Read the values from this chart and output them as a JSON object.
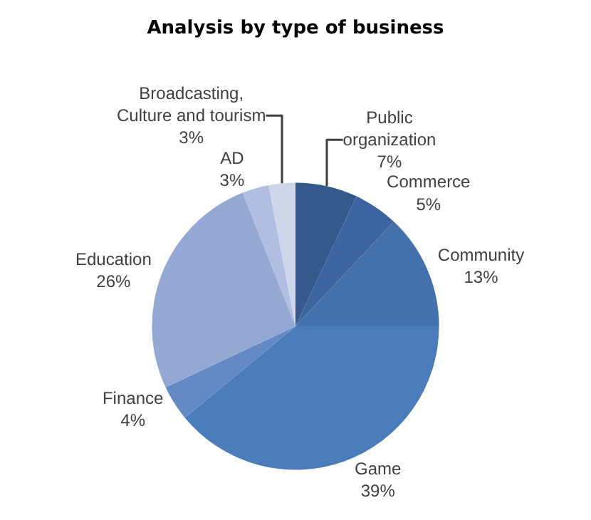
{
  "chart_data": {
    "type": "pie",
    "title": "Analysis by type of business",
    "categories": [
      "Public\norganization",
      "Commerce",
      "Community",
      "Game",
      "Finance",
      "Education",
      "AD",
      "Broadcasting,\nCulture and tourism"
    ],
    "values": [
      7,
      5,
      13,
      39,
      4,
      26,
      3,
      3
    ],
    "value_labels": [
      "7%",
      "5%",
      "13%",
      "39%",
      "4%",
      "26%",
      "3%",
      "3%"
    ],
    "colors": [
      "#34598a",
      "#3c64a0",
      "#4470ab",
      "#4a7cbb",
      "#6489c4",
      "#93a9d3",
      "#b0bfdf",
      "#cdd6ea"
    ]
  }
}
